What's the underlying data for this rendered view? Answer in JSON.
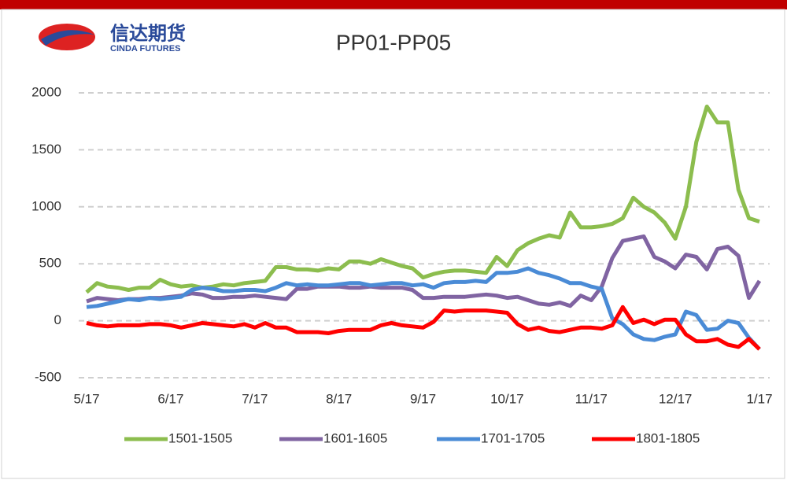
{
  "logo": {
    "name": "信达期货",
    "sub": "CINDA FUTURES"
  },
  "chart_data": {
    "type": "line",
    "title": "PP01-PP05",
    "categories": [
      "5/17",
      null,
      null,
      null,
      null,
      null,
      null,
      null,
      "6/17",
      null,
      null,
      null,
      null,
      null,
      null,
      null,
      "7/17",
      null,
      null,
      null,
      null,
      null,
      null,
      null,
      "8/17",
      null,
      null,
      null,
      null,
      null,
      null,
      null,
      "9/17",
      null,
      null,
      null,
      null,
      null,
      null,
      null,
      "10/17",
      null,
      null,
      null,
      null,
      null,
      null,
      null,
      "11/17",
      null,
      null,
      null,
      null,
      null,
      null,
      null,
      "12/17",
      null,
      null,
      null,
      null,
      null,
      null,
      null,
      "1/17"
    ],
    "series": [
      {
        "name": "1501-1505",
        "color": "#8cbd4e",
        "values": [
          250,
          330,
          300,
          290,
          270,
          290,
          290,
          360,
          320,
          300,
          310,
          290,
          300,
          320,
          310,
          330,
          340,
          350,
          470,
          470,
          450,
          450,
          440,
          460,
          450,
          520,
          520,
          500,
          540,
          510,
          480,
          460,
          380,
          410,
          430,
          440,
          440,
          430,
          420,
          560,
          480,
          620,
          680,
          720,
          750,
          730,
          950,
          820,
          820,
          830,
          850,
          900,
          1080,
          1000,
          950,
          860,
          720,
          1000,
          1570,
          1880,
          1740,
          1740,
          1150,
          900,
          870
        ]
      },
      {
        "name": "1601-1605",
        "color": "#8064a2",
        "values": [
          170,
          200,
          190,
          180,
          190,
          190,
          200,
          200,
          210,
          220,
          240,
          230,
          200,
          200,
          210,
          210,
          220,
          210,
          200,
          190,
          280,
          280,
          300,
          300,
          300,
          290,
          290,
          300,
          290,
          290,
          290,
          270,
          200,
          200,
          210,
          210,
          210,
          220,
          230,
          220,
          200,
          210,
          180,
          150,
          140,
          160,
          130,
          220,
          180,
          300,
          550,
          700,
          720,
          740,
          560,
          520,
          460,
          580,
          560,
          450,
          630,
          650,
          570,
          200,
          350
        ]
      },
      {
        "name": "1701-1705",
        "color": "#4a8bd6",
        "values": [
          120,
          130,
          150,
          170,
          190,
          180,
          200,
          190,
          200,
          210,
          270,
          290,
          280,
          260,
          260,
          270,
          270,
          260,
          290,
          330,
          310,
          320,
          310,
          310,
          320,
          330,
          330,
          310,
          320,
          330,
          330,
          310,
          320,
          290,
          330,
          340,
          340,
          350,
          340,
          420,
          420,
          430,
          460,
          420,
          400,
          370,
          330,
          330,
          300,
          280,
          20,
          -30,
          -120,
          -160,
          -170,
          -140,
          -120,
          80,
          50,
          -80,
          -70,
          0,
          -20,
          -150,
          -250
        ]
      },
      {
        "name": "1801-1805",
        "color": "#ff0000",
        "values": [
          -20,
          -40,
          -50,
          -40,
          -40,
          -40,
          -30,
          -30,
          -40,
          -60,
          -40,
          -20,
          -30,
          -40,
          -50,
          -30,
          -60,
          -20,
          -60,
          -60,
          -100,
          -100,
          -100,
          -110,
          -90,
          -80,
          -80,
          -80,
          -40,
          -20,
          -40,
          -50,
          -60,
          -10,
          90,
          80,
          90,
          90,
          90,
          80,
          70,
          -30,
          -80,
          -60,
          -90,
          -100,
          -80,
          -60,
          -60,
          -70,
          -40,
          120,
          -20,
          10,
          -30,
          10,
          10,
          -120,
          -180,
          -180,
          -160,
          -210,
          -230,
          -160,
          -250
        ]
      }
    ],
    "ylim": [
      -500,
      2000
    ],
    "yticks": [
      -500,
      0,
      500,
      1000,
      1500,
      2000
    ],
    "grid": true
  }
}
